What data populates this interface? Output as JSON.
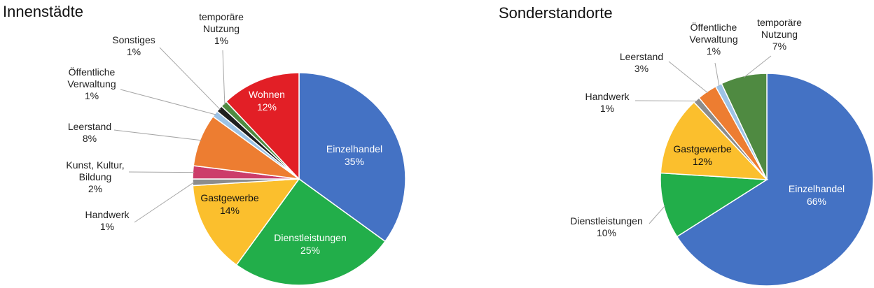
{
  "chart_data": [
    {
      "type": "pie",
      "title": "Innenstädte",
      "slices": [
        {
          "name": "Einzelhandel",
          "value": 35,
          "pct": "35%",
          "color": "#4472C4",
          "inside": true
        },
        {
          "name": "Dienstleistungen",
          "value": 25,
          "pct": "25%",
          "color": "#22AE4A",
          "inside": true
        },
        {
          "name": "Gastgewerbe",
          "value": 14,
          "pct": "14%",
          "color": "#FBBF2D",
          "inside": true
        },
        {
          "name": "Handwerk",
          "value": 1,
          "pct": "1%",
          "color": "#8C8C8C",
          "inside": false
        },
        {
          "name": "Kunst, Kultur, Bildung",
          "value": 2,
          "pct": "2%",
          "color": "#CC3D6A",
          "inside": false
        },
        {
          "name": "Leerstand",
          "value": 8,
          "pct": "8%",
          "color": "#ED7D31",
          "inside": false
        },
        {
          "name": "Öffentliche Verwaltung",
          "value": 1,
          "pct": "1%",
          "color": "#9DC3E6",
          "inside": false
        },
        {
          "name": "Sonstiges",
          "value": 1,
          "pct": "1%",
          "color": "#1F1F1F",
          "inside": false
        },
        {
          "name": "temporäre Nutzung",
          "value": 1,
          "pct": "1%",
          "color": "#4F8A41",
          "inside": false
        },
        {
          "name": "Wohnen",
          "value": 12,
          "pct": "12%",
          "color": "#E21F26",
          "inside": true
        }
      ]
    },
    {
      "type": "pie",
      "title": "Sonderstandorte",
      "slices": [
        {
          "name": "Einzelhandel",
          "value": 66,
          "pct": "66%",
          "color": "#4472C4",
          "inside": true
        },
        {
          "name": "Dienstleistungen",
          "value": 10,
          "pct": "10%",
          "color": "#22AE4A",
          "inside": false
        },
        {
          "name": "Gastgewerbe",
          "value": 12,
          "pct": "12%",
          "color": "#FBBF2D",
          "inside": true
        },
        {
          "name": "Handwerk",
          "value": 1,
          "pct": "1%",
          "color": "#8C8C8C",
          "inside": false
        },
        {
          "name": "Leerstand",
          "value": 3,
          "pct": "3%",
          "color": "#ED7D31",
          "inside": false
        },
        {
          "name": "Öffentliche Verwaltung",
          "value": 1,
          "pct": "1%",
          "color": "#9DC3E6",
          "inside": false
        },
        {
          "name": "temporäre Nutzung",
          "value": 7,
          "pct": "7%",
          "color": "#4F8A41",
          "inside": false
        }
      ]
    }
  ]
}
